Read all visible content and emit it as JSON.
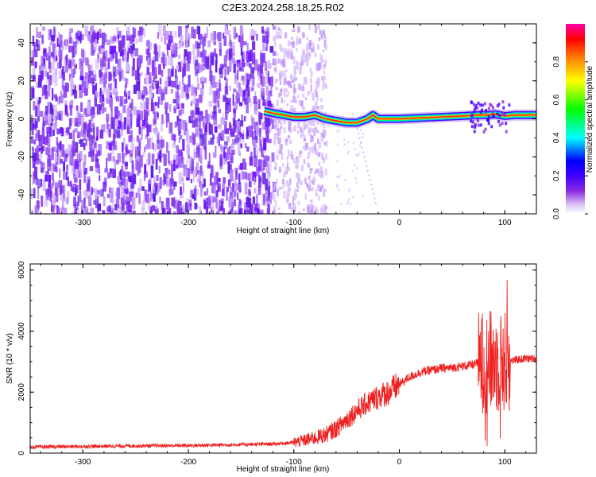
{
  "title": "C2E3.2024.258.18.25.R02",
  "chart_data": [
    {
      "type": "heatmap",
      "title": "C2E3.2024.258.18.25.R02",
      "xlabel": "Height of straight line (km)",
      "ylabel": "Frequency (Hz)",
      "xlim": [
        -350,
        130
      ],
      "ylim": [
        -50,
        50
      ],
      "xticks": [
        -300,
        -200,
        -100,
        0,
        100
      ],
      "xtick_labels": [
        "-300",
        "-200",
        "-100",
        "0",
        "100"
      ],
      "yticks": [
        -40,
        -20,
        0,
        20,
        40
      ],
      "ytick_labels": [
        "-40",
        "-20",
        "0",
        "20",
        "40"
      ],
      "ridge": {
        "x": [
          -128,
          -120,
          -110,
          -100,
          -90,
          -80,
          -70,
          -60,
          -50,
          -40,
          -30,
          -25,
          -20,
          -10,
          0,
          20,
          40,
          60,
          75,
          85,
          90,
          95,
          100,
          110,
          120,
          130
        ],
        "y": [
          4,
          3,
          2,
          1,
          1,
          2,
          0,
          -1,
          -2,
          -2,
          0,
          2,
          0,
          0,
          0,
          0.5,
          1,
          1.5,
          2,
          2,
          2.5,
          2,
          1.5,
          2,
          2,
          2
        ]
      },
      "colorbar": {
        "label": "Normalized spectral amplitude",
        "range": [
          0,
          1
        ],
        "ticks": [
          0.0,
          0.2,
          0.4,
          0.6,
          0.8
        ],
        "tick_labels": [
          "0.0",
          "0.2",
          "0.4",
          "0.6",
          "0.8"
        ],
        "colors": [
          "#ffffff",
          "#d9c2f2",
          "#8a2be2",
          "#3f00ff",
          "#0000ff",
          "#00ffff",
          "#00ff00",
          "#ffff00",
          "#ff8000",
          "#ff0000",
          "#ff00aa"
        ]
      },
      "grid": false,
      "legend": "none"
    },
    {
      "type": "line",
      "xlabel": "Height of straight line (km)",
      "ylabel": "SNR (10 * v/v)",
      "xlim": [
        -350,
        130
      ],
      "ylim": [
        0,
        6200
      ],
      "xticks": [
        -300,
        -200,
        -100,
        0,
        100
      ],
      "xtick_labels": [
        "-300",
        "-200",
        "-100",
        "0",
        "100"
      ],
      "yticks": [
        0,
        2000,
        4000,
        6000
      ],
      "ytick_labels": [
        "0",
        "2000",
        "4000",
        "6000"
      ],
      "color": "#ee2222",
      "series": [
        {
          "x": [
            -350,
            -300,
            -250,
            -200,
            -150,
            -120,
            -100,
            -90,
            -80,
            -70,
            -60,
            -50,
            -40,
            -30,
            -20,
            -10,
            0,
            10,
            20,
            30,
            40,
            50,
            60,
            70,
            75,
            80,
            85,
            90,
            95,
            100,
            110,
            120,
            130
          ],
          "values": [
            200,
            220,
            240,
            250,
            280,
            300,
            350,
            420,
            500,
            600,
            800,
            1100,
            1400,
            1650,
            1850,
            2000,
            2250,
            2500,
            2650,
            2720,
            2780,
            2800,
            2850,
            2900,
            2950,
            3000,
            3000,
            3000,
            2950,
            3000,
            3050,
            3100,
            3100
          ]
        }
      ],
      "grid": false,
      "legend": "none"
    }
  ]
}
